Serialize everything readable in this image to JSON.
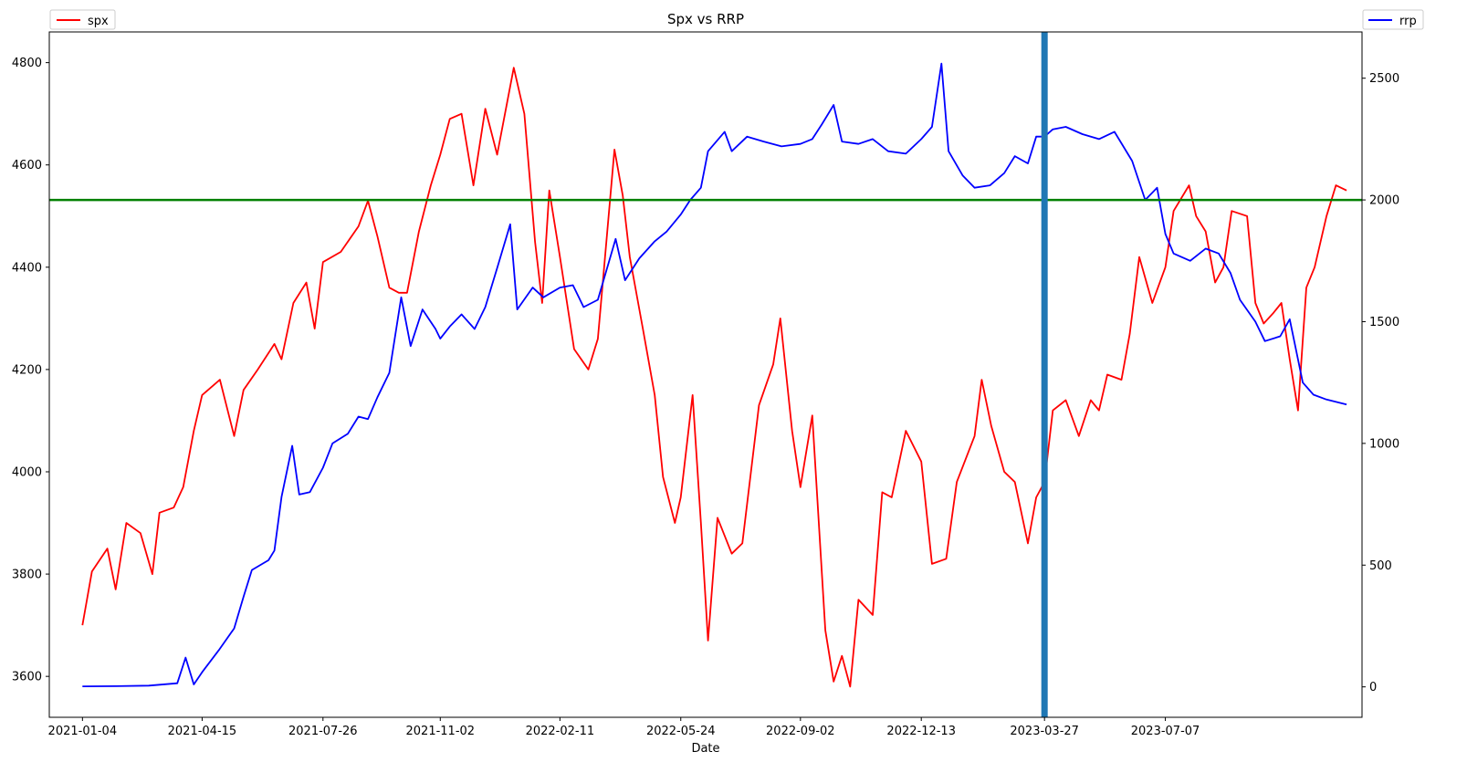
{
  "chart_data": {
    "type": "line",
    "title": "Spx vs RRP",
    "xlabel": "Date",
    "ylabel": "",
    "y2label": "",
    "x_ticks": [
      "2021-01-04",
      "2021-04-15",
      "2021-07-26",
      "2021-11-02",
      "2022-02-11",
      "2022-05-24",
      "2022-09-02",
      "2022-12-13",
      "2023-03-27",
      "2023-07-07"
    ],
    "x_range": [
      "2020-12-07",
      "2023-12-20"
    ],
    "ylim": [
      3520,
      4860
    ],
    "y2lim": [
      -125,
      2690
    ],
    "y_ticks": [
      3600,
      3800,
      4000,
      4200,
      4400,
      4600,
      4800
    ],
    "y2_ticks": [
      0,
      500,
      1000,
      1500,
      2000,
      2500
    ],
    "grid": false,
    "series": [
      {
        "name": "spx",
        "axis": "left",
        "color": "#ff0000",
        "legend_position": "top-left",
        "points": [
          [
            "2021-01-04",
            3700
          ],
          [
            "2021-01-12",
            3805
          ],
          [
            "2021-01-25",
            3850
          ],
          [
            "2021-02-01",
            3770
          ],
          [
            "2021-02-10",
            3900
          ],
          [
            "2021-02-22",
            3880
          ],
          [
            "2021-03-04",
            3800
          ],
          [
            "2021-03-10",
            3920
          ],
          [
            "2021-03-22",
            3930
          ],
          [
            "2021-03-30",
            3970
          ],
          [
            "2021-04-08",
            4080
          ],
          [
            "2021-04-15",
            4150
          ],
          [
            "2021-04-30",
            4180
          ],
          [
            "2021-05-12",
            4070
          ],
          [
            "2021-05-20",
            4160
          ],
          [
            "2021-06-01",
            4200
          ],
          [
            "2021-06-15",
            4250
          ],
          [
            "2021-06-21",
            4220
          ],
          [
            "2021-07-01",
            4330
          ],
          [
            "2021-07-12",
            4370
          ],
          [
            "2021-07-19",
            4280
          ],
          [
            "2021-07-26",
            4410
          ],
          [
            "2021-08-10",
            4430
          ],
          [
            "2021-08-25",
            4480
          ],
          [
            "2021-09-02",
            4530
          ],
          [
            "2021-09-10",
            4460
          ],
          [
            "2021-09-20",
            4360
          ],
          [
            "2021-09-28",
            4350
          ],
          [
            "2021-10-05",
            4350
          ],
          [
            "2021-10-15",
            4470
          ],
          [
            "2021-10-25",
            4560
          ],
          [
            "2021-11-02",
            4620
          ],
          [
            "2021-11-10",
            4690
          ],
          [
            "2021-11-20",
            4700
          ],
          [
            "2021-11-30",
            4560
          ],
          [
            "2021-12-10",
            4710
          ],
          [
            "2021-12-20",
            4620
          ],
          [
            "2022-01-03",
            4790
          ],
          [
            "2022-01-12",
            4700
          ],
          [
            "2022-01-21",
            4450
          ],
          [
            "2022-01-27",
            4330
          ],
          [
            "2022-02-02",
            4550
          ],
          [
            "2022-02-11",
            4420
          ],
          [
            "2022-02-23",
            4240
          ],
          [
            "2022-03-07",
            4200
          ],
          [
            "2022-03-15",
            4260
          ],
          [
            "2022-03-29",
            4630
          ],
          [
            "2022-04-05",
            4540
          ],
          [
            "2022-04-11",
            4420
          ],
          [
            "2022-04-22",
            4280
          ],
          [
            "2022-05-02",
            4150
          ],
          [
            "2022-05-09",
            3990
          ],
          [
            "2022-05-19",
            3900
          ],
          [
            "2022-05-24",
            3950
          ],
          [
            "2022-06-03",
            4150
          ],
          [
            "2022-06-10",
            3900
          ],
          [
            "2022-06-16",
            3670
          ],
          [
            "2022-06-24",
            3910
          ],
          [
            "2022-07-06",
            3840
          ],
          [
            "2022-07-15",
            3860
          ],
          [
            "2022-07-29",
            4130
          ],
          [
            "2022-08-10",
            4210
          ],
          [
            "2022-08-16",
            4300
          ],
          [
            "2022-08-26",
            4080
          ],
          [
            "2022-09-02",
            3970
          ],
          [
            "2022-09-12",
            4110
          ],
          [
            "2022-09-23",
            3690
          ],
          [
            "2022-09-30",
            3590
          ],
          [
            "2022-10-07",
            3640
          ],
          [
            "2022-10-14",
            3580
          ],
          [
            "2022-10-21",
            3750
          ],
          [
            "2022-11-02",
            3720
          ],
          [
            "2022-11-10",
            3960
          ],
          [
            "2022-11-18",
            3950
          ],
          [
            "2022-11-30",
            4080
          ],
          [
            "2022-12-13",
            4020
          ],
          [
            "2022-12-22",
            3820
          ],
          [
            "2023-01-03",
            3830
          ],
          [
            "2023-01-12",
            3980
          ],
          [
            "2023-01-27",
            4070
          ],
          [
            "2023-02-02",
            4180
          ],
          [
            "2023-02-10",
            4090
          ],
          [
            "2023-02-21",
            4000
          ],
          [
            "2023-03-02",
            3980
          ],
          [
            "2023-03-13",
            3860
          ],
          [
            "2023-03-20",
            3950
          ],
          [
            "2023-03-27",
            3980
          ],
          [
            "2023-04-03",
            4120
          ],
          [
            "2023-04-14",
            4140
          ],
          [
            "2023-04-25",
            4070
          ],
          [
            "2023-05-05",
            4140
          ],
          [
            "2023-05-12",
            4120
          ],
          [
            "2023-05-19",
            4190
          ],
          [
            "2023-05-31",
            4180
          ],
          [
            "2023-06-07",
            4270
          ],
          [
            "2023-06-15",
            4420
          ],
          [
            "2023-06-26",
            4330
          ],
          [
            "2023-07-07",
            4400
          ],
          [
            "2023-07-14",
            4510
          ],
          [
            "2023-07-27",
            4560
          ],
          [
            "2023-08-02",
            4500
          ],
          [
            "2023-08-10",
            4470
          ],
          [
            "2023-08-18",
            4370
          ],
          [
            "2023-08-25",
            4400
          ],
          [
            "2023-09-01",
            4510
          ],
          [
            "2023-09-14",
            4500
          ],
          [
            "2023-09-21",
            4330
          ],
          [
            "2023-09-28",
            4290
          ],
          [
            "2023-10-06",
            4310
          ],
          [
            "2023-10-13",
            4330
          ],
          [
            "2023-10-20",
            4220
          ],
          [
            "2023-10-27",
            4120
          ],
          [
            "2023-11-03",
            4360
          ],
          [
            "2023-11-10",
            4400
          ],
          [
            "2023-11-20",
            4500
          ],
          [
            "2023-11-28",
            4560
          ],
          [
            "2023-12-07",
            4550
          ]
        ]
      },
      {
        "name": "rrp",
        "axis": "right",
        "color": "#0000ff",
        "legend_position": "top-right",
        "points": [
          [
            "2021-01-04",
            2
          ],
          [
            "2021-02-01",
            3
          ],
          [
            "2021-03-01",
            5
          ],
          [
            "2021-03-25",
            15
          ],
          [
            "2021-04-01",
            120
          ],
          [
            "2021-04-08",
            10
          ],
          [
            "2021-04-15",
            60
          ],
          [
            "2021-04-29",
            150
          ],
          [
            "2021-05-12",
            240
          ],
          [
            "2021-05-20",
            370
          ],
          [
            "2021-05-27",
            480
          ],
          [
            "2021-06-10",
            520
          ],
          [
            "2021-06-15",
            560
          ],
          [
            "2021-06-21",
            780
          ],
          [
            "2021-06-30",
            990
          ],
          [
            "2021-07-06",
            790
          ],
          [
            "2021-07-15",
            800
          ],
          [
            "2021-07-26",
            900
          ],
          [
            "2021-08-03",
            1000
          ],
          [
            "2021-08-16",
            1040
          ],
          [
            "2021-08-25",
            1110
          ],
          [
            "2021-09-02",
            1100
          ],
          [
            "2021-09-10",
            1190
          ],
          [
            "2021-09-20",
            1290
          ],
          [
            "2021-09-30",
            1600
          ],
          [
            "2021-10-08",
            1400
          ],
          [
            "2021-10-18",
            1550
          ],
          [
            "2021-10-29",
            1470
          ],
          [
            "2021-11-02",
            1430
          ],
          [
            "2021-11-10",
            1480
          ],
          [
            "2021-11-20",
            1530
          ],
          [
            "2021-12-01",
            1470
          ],
          [
            "2021-12-10",
            1560
          ],
          [
            "2021-12-20",
            1720
          ],
          [
            "2021-12-31",
            1900
          ],
          [
            "2022-01-06",
            1550
          ],
          [
            "2022-01-19",
            1640
          ],
          [
            "2022-01-28",
            1600
          ],
          [
            "2022-02-11",
            1640
          ],
          [
            "2022-02-22",
            1650
          ],
          [
            "2022-03-03",
            1560
          ],
          [
            "2022-03-15",
            1590
          ],
          [
            "2022-03-30",
            1840
          ],
          [
            "2022-04-07",
            1670
          ],
          [
            "2022-04-19",
            1760
          ],
          [
            "2022-05-02",
            1830
          ],
          [
            "2022-05-12",
            1870
          ],
          [
            "2022-05-24",
            1940
          ],
          [
            "2022-06-01",
            2000
          ],
          [
            "2022-06-10",
            2050
          ],
          [
            "2022-06-16",
            2200
          ],
          [
            "2022-06-30",
            2280
          ],
          [
            "2022-07-06",
            2200
          ],
          [
            "2022-07-19",
            2260
          ],
          [
            "2022-08-02",
            2240
          ],
          [
            "2022-08-17",
            2220
          ],
          [
            "2022-09-02",
            2230
          ],
          [
            "2022-09-12",
            2250
          ],
          [
            "2022-09-20",
            2310
          ],
          [
            "2022-09-30",
            2390
          ],
          [
            "2022-10-07",
            2240
          ],
          [
            "2022-10-21",
            2230
          ],
          [
            "2022-11-02",
            2250
          ],
          [
            "2022-11-15",
            2200
          ],
          [
            "2022-11-30",
            2190
          ],
          [
            "2022-12-13",
            2250
          ],
          [
            "2022-12-22",
            2300
          ],
          [
            "2022-12-30",
            2560
          ],
          [
            "2023-01-05",
            2200
          ],
          [
            "2023-01-17",
            2100
          ],
          [
            "2023-01-27",
            2050
          ],
          [
            "2023-02-09",
            2060
          ],
          [
            "2023-02-21",
            2110
          ],
          [
            "2023-03-02",
            2180
          ],
          [
            "2023-03-13",
            2150
          ],
          [
            "2023-03-20",
            2260
          ],
          [
            "2023-03-27",
            2260
          ],
          [
            "2023-04-03",
            2290
          ],
          [
            "2023-04-14",
            2300
          ],
          [
            "2023-04-28",
            2270
          ],
          [
            "2023-05-12",
            2250
          ],
          [
            "2023-05-25",
            2280
          ],
          [
            "2023-06-09",
            2160
          ],
          [
            "2023-06-20",
            2000
          ],
          [
            "2023-06-30",
            2050
          ],
          [
            "2023-07-07",
            1860
          ],
          [
            "2023-07-14",
            1780
          ],
          [
            "2023-07-28",
            1750
          ],
          [
            "2023-08-10",
            1800
          ],
          [
            "2023-08-21",
            1780
          ],
          [
            "2023-08-31",
            1700
          ],
          [
            "2023-09-08",
            1590
          ],
          [
            "2023-09-21",
            1500
          ],
          [
            "2023-09-29",
            1420
          ],
          [
            "2023-10-12",
            1440
          ],
          [
            "2023-10-20",
            1510
          ],
          [
            "2023-10-31",
            1250
          ],
          [
            "2023-11-09",
            1200
          ],
          [
            "2023-11-20",
            1180
          ],
          [
            "2023-12-07",
            1160
          ]
        ]
      }
    ],
    "annotations": [
      {
        "kind": "hline",
        "axis": "right",
        "value": 2000,
        "color": "#008000"
      },
      {
        "kind": "vline",
        "x": "2023-03-27",
        "color": "#1f77b4"
      }
    ]
  }
}
